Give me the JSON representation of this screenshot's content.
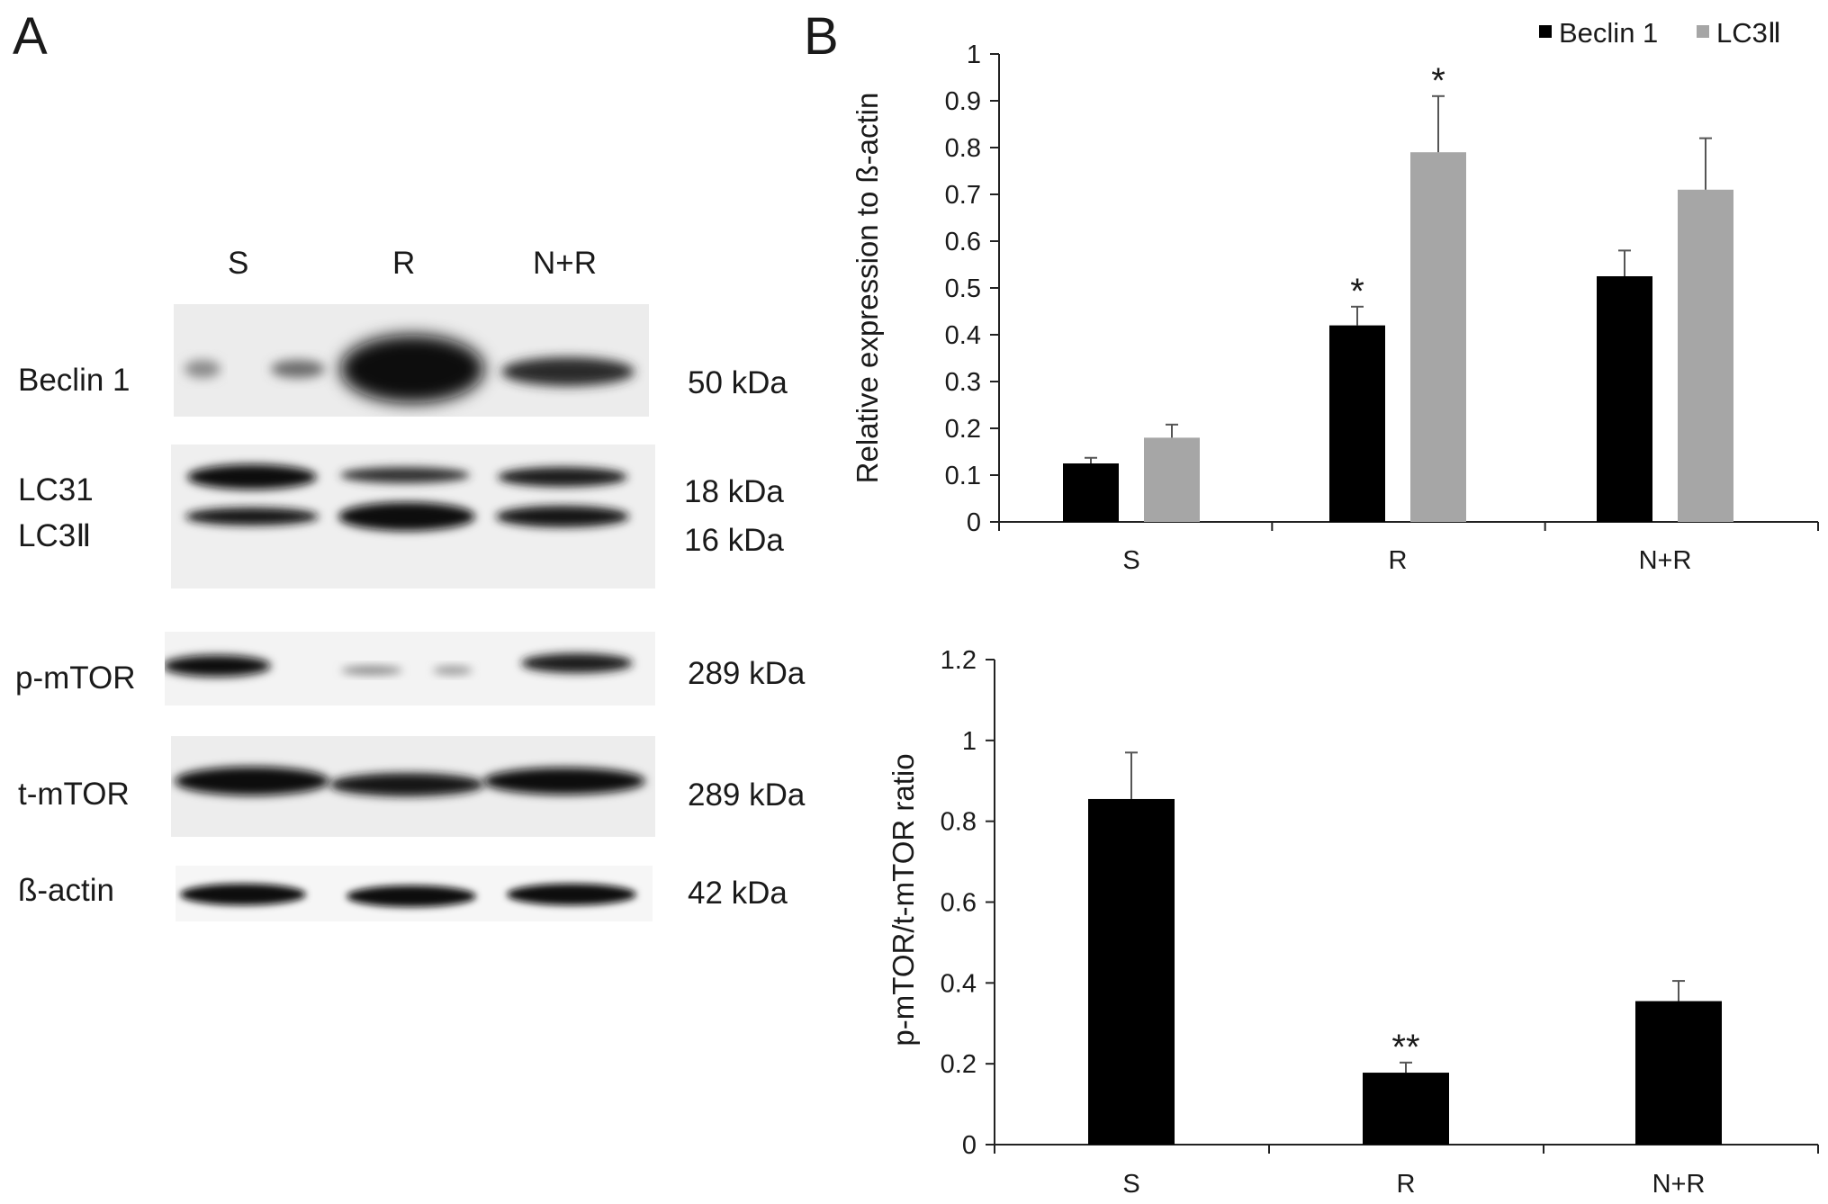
{
  "panels": {
    "a": "A",
    "b": "B"
  },
  "blot": {
    "lanes": [
      "S",
      "R",
      "N+R"
    ],
    "rows": [
      {
        "label": "Beclin 1",
        "size": "50 kDa"
      },
      {
        "label": "LC31",
        "size": "18 kDa"
      },
      {
        "label": "LC3Ⅱ",
        "size": "16 kDa"
      },
      {
        "label": "p-mTOR",
        "size": "289 kDa"
      },
      {
        "label": "t-mTOR",
        "size": "289 kDa"
      },
      {
        "label": "ß-actin",
        "size": "42 kDa"
      }
    ]
  },
  "chart_data": [
    {
      "type": "bar",
      "categories": [
        "S",
        "R",
        "N+R"
      ],
      "series": [
        {
          "name": "Beclin 1",
          "color": "#000000",
          "values": [
            0.125,
            0.42,
            0.525
          ],
          "errors": [
            0.012,
            0.04,
            0.055
          ],
          "annotations": [
            "",
            "*",
            ""
          ]
        },
        {
          "name": "LC3Ⅱ",
          "color": "#a6a6a6",
          "values": [
            0.18,
            0.79,
            0.71
          ],
          "errors": [
            0.028,
            0.12,
            0.11
          ],
          "annotations": [
            "",
            "*",
            ""
          ]
        }
      ],
      "ylabel": "Relative expression to ß-actin",
      "xlabel": "",
      "ylim": [
        0,
        1
      ],
      "yticks": [
        "0",
        "0.1",
        "0.2",
        "0.3",
        "0.4",
        "0.5",
        "0.6",
        "0.7",
        "0.8",
        "0.9",
        "1"
      ],
      "legend": "top-right",
      "grid": false
    },
    {
      "type": "bar",
      "categories": [
        "S",
        "R",
        "N+R"
      ],
      "series": [
        {
          "name": "",
          "color": "#000000",
          "values": [
            0.855,
            0.178,
            0.355
          ],
          "errors": [
            0.115,
            0.025,
            0.05
          ],
          "annotations": [
            "",
            "**",
            ""
          ]
        }
      ],
      "ylabel": "p-mTOR/t-mTOR ratio",
      "xlabel": "",
      "ylim": [
        0,
        1.2
      ],
      "yticks": [
        "0",
        "0.2",
        "0.4",
        "0.6",
        "0.8",
        "1",
        "1.2"
      ],
      "legend": "none",
      "grid": false
    }
  ]
}
